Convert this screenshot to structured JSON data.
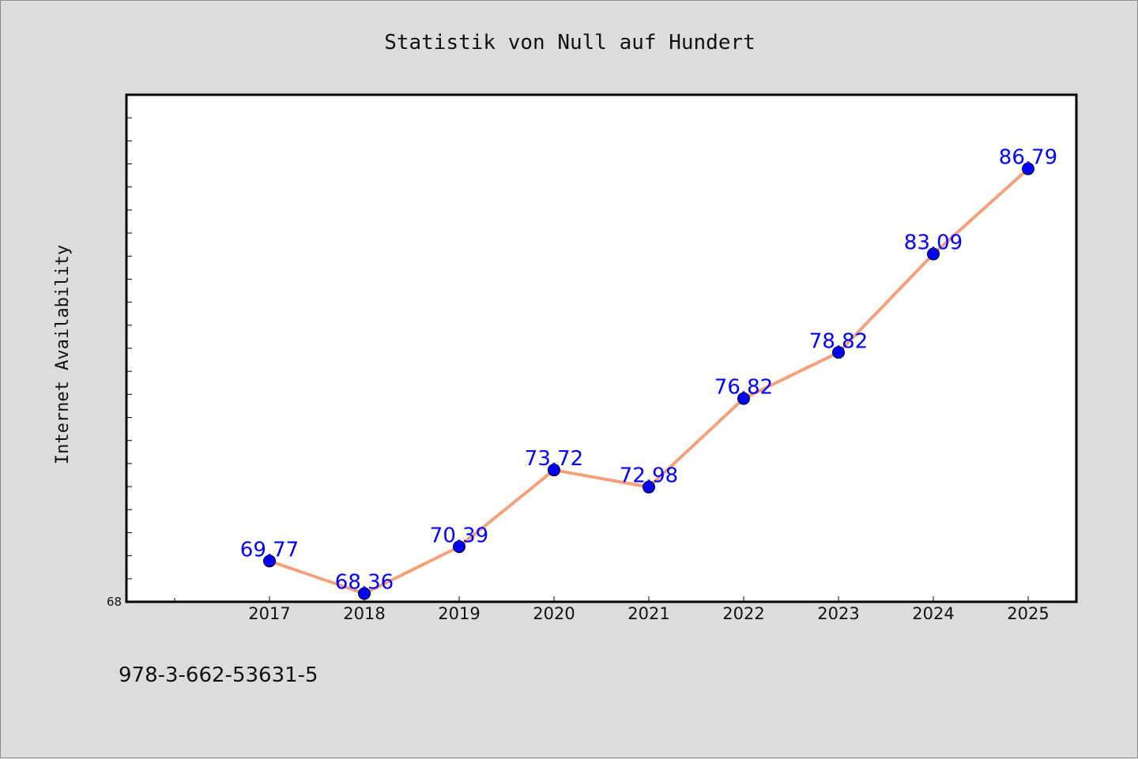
{
  "chart_data": {
    "type": "line",
    "title": "Statistik von Null auf Hundert",
    "xlabel": "",
    "ylabel": "Internet Availability",
    "categories": [
      "2017",
      "2018",
      "2019",
      "2020",
      "2021",
      "2022",
      "2023",
      "2024",
      "2025"
    ],
    "series": [
      {
        "values": [
          69.77,
          68.36,
          70.39,
          73.72,
          72.98,
          76.82,
          78.82,
          83.09,
          86.79
        ],
        "labels": [
          "69.77",
          "68.36",
          "70.39",
          "73.72",
          "72.98",
          "76.82",
          "78.82",
          "83.09",
          "86.79"
        ]
      }
    ],
    "ylim": [
      68,
      90
    ],
    "y_tick_labels": [
      "68"
    ],
    "grid": false,
    "line_color": "#f4a07a",
    "marker_color": "#0000ff",
    "label_color": "#0000ff"
  },
  "footer": {
    "isbn": "978-3-662-53631-5"
  },
  "colors": {
    "background": "#dcdcdc",
    "plot_background": "#ffffff"
  }
}
